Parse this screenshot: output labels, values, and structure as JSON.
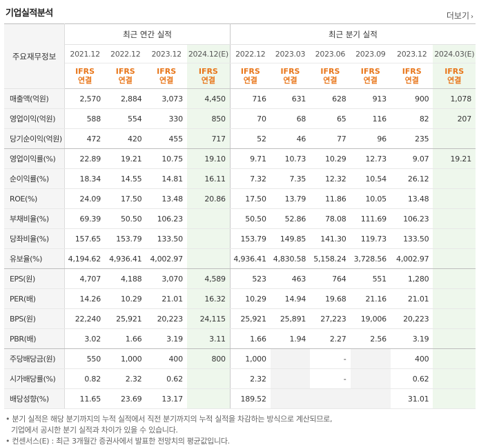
{
  "title": "기업실적분석",
  "more_label": "더보기",
  "header": {
    "row_label": "주요재무정보",
    "annual_group": "최근 연간 실적",
    "quarter_group": "최근 분기 실적",
    "periods": [
      "2021.12",
      "2022.12",
      "2023.12",
      "2024.12(E)",
      "2022.12",
      "2023.03",
      "2023.06",
      "2023.09",
      "2023.12",
      "2024.03(E)"
    ],
    "basis_top": "IFRS",
    "basis_bottom": "연결"
  },
  "rows": [
    {
      "label": "매출액(억원)",
      "values": [
        "2,570",
        "2,884",
        "3,073",
        "4,450",
        "716",
        "631",
        "628",
        "913",
        "900",
        "1,078"
      ]
    },
    {
      "label": "영업이익(억원)",
      "values": [
        "588",
        "554",
        "330",
        "850",
        "70",
        "68",
        "65",
        "116",
        "82",
        "207"
      ]
    },
    {
      "label": "당기순이익(억원)",
      "values": [
        "472",
        "420",
        "455",
        "717",
        "52",
        "46",
        "77",
        "96",
        "235",
        ""
      ]
    },
    {
      "label": "영업이익률(%)",
      "values": [
        "22.89",
        "19.21",
        "10.75",
        "19.10",
        "9.71",
        "10.73",
        "10.29",
        "12.73",
        "9.07",
        "19.21"
      ]
    },
    {
      "label": "순이익률(%)",
      "values": [
        "18.34",
        "14.55",
        "14.81",
        "16.11",
        "7.32",
        "7.35",
        "12.32",
        "10.54",
        "26.12",
        ""
      ]
    },
    {
      "label": "ROE(%)",
      "values": [
        "24.09",
        "17.50",
        "13.48",
        "20.86",
        "17.50",
        "13.79",
        "11.86",
        "10.05",
        "13.48",
        ""
      ]
    },
    {
      "label": "부채비율(%)",
      "values": [
        "69.39",
        "50.50",
        "106.23",
        "",
        "50.50",
        "52.86",
        "78.08",
        "111.69",
        "106.23",
        ""
      ]
    },
    {
      "label": "당좌비율(%)",
      "values": [
        "157.65",
        "153.79",
        "133.50",
        "",
        "153.79",
        "149.85",
        "141.30",
        "119.73",
        "133.50",
        ""
      ]
    },
    {
      "label": "유보율(%)",
      "values": [
        "4,194.62",
        "4,936.41",
        "4,002.97",
        "",
        "4,936.41",
        "4,830.58",
        "5,158.24",
        "3,728.56",
        "4,002.97",
        ""
      ]
    },
    {
      "label": "EPS(원)",
      "values": [
        "4,707",
        "4,188",
        "3,070",
        "4,589",
        "523",
        "463",
        "764",
        "551",
        "1,280",
        ""
      ]
    },
    {
      "label": "PER(배)",
      "values": [
        "14.26",
        "10.29",
        "21.01",
        "16.32",
        "10.29",
        "14.94",
        "19.68",
        "21.16",
        "21.01",
        ""
      ]
    },
    {
      "label": "BPS(원)",
      "values": [
        "22,240",
        "25,921",
        "20,223",
        "24,115",
        "25,921",
        "25,891",
        "27,223",
        "19,006",
        "20,223",
        ""
      ]
    },
    {
      "label": "PBR(배)",
      "values": [
        "3.02",
        "1.66",
        "3.19",
        "3.11",
        "1.66",
        "1.94",
        "2.27",
        "2.56",
        "3.19",
        ""
      ]
    },
    {
      "label": "주당배당금(원)",
      "values": [
        "550",
        "1,000",
        "400",
        "800",
        "1,000",
        "",
        "-",
        "",
        "400",
        ""
      ]
    },
    {
      "label": "시가배당률(%)",
      "values": [
        "0.82",
        "2.32",
        "0.62",
        "",
        "2.32",
        "",
        "-",
        "",
        "0.62",
        ""
      ]
    },
    {
      "label": "배당성향(%)",
      "values": [
        "11.65",
        "23.69",
        "13.17",
        "",
        "189.52",
        "",
        "",
        "",
        "31.01",
        ""
      ]
    }
  ],
  "notes": [
    "분기 실적은 해당 분기까지의 누적 실적에서 직전 분기까지의 누적 실적을 차감하는 방식으로 계산되므로,",
    "기업에서 공시한 분기 실적과 차이가 있을 수 있습니다.",
    "컨센서스(E) : 최근 3개월간 증권사에서 발표한 전망치의 평균값입니다."
  ]
}
